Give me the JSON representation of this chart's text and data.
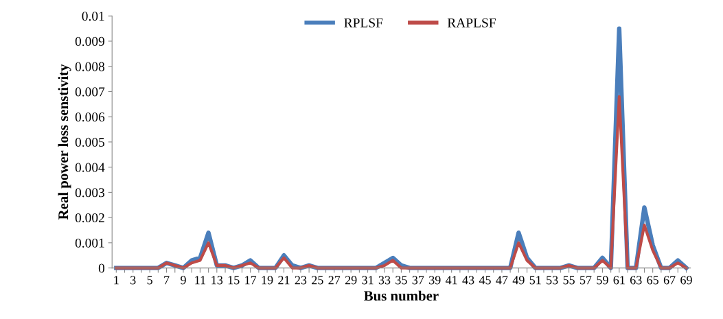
{
  "chart_data": {
    "type": "line",
    "xlabel": "Bus number",
    "ylabel": "Real power loss senstivity",
    "categories": [
      "1",
      null,
      "3",
      null,
      "5",
      null,
      "7",
      null,
      "9",
      null,
      "11",
      null,
      "13",
      null,
      "15",
      null,
      "17",
      null,
      "19",
      null,
      "21",
      null,
      "23",
      null,
      "25",
      null,
      "27",
      null,
      "29",
      null,
      "31",
      null,
      "33",
      null,
      "35",
      null,
      "37",
      null,
      "39",
      null,
      "41",
      null,
      "43",
      null,
      "45",
      null,
      "47",
      null,
      "49",
      null,
      "51",
      null,
      "53",
      null,
      "55",
      null,
      "57",
      null,
      "59",
      null,
      "61",
      null,
      "63",
      null,
      "65",
      null,
      "67",
      null,
      "69"
    ],
    "series": [
      {
        "name": "RPLSF",
        "color": "#4a7ebb",
        "values": [
          0,
          0,
          0,
          0,
          0,
          0,
          0.0002,
          0.0001,
          0,
          0.0003,
          0.0004,
          0.0014,
          0.0001,
          0.0001,
          0,
          0.0001,
          0.0003,
          0,
          0,
          0,
          0.0005,
          0.0001,
          0,
          0.0001,
          0,
          0,
          0,
          0,
          0,
          0,
          0,
          0,
          0.0002,
          0.0004,
          0.0001,
          0,
          0,
          0,
          0,
          0,
          0,
          0,
          0,
          0,
          0,
          0,
          0,
          0,
          0.0014,
          0.0004,
          0,
          0,
          0,
          0,
          0.0001,
          0,
          0,
          0,
          0.0004,
          0,
          0.0095,
          0,
          0,
          0.0024,
          0.0009,
          0,
          0,
          0.0003,
          0
        ]
      },
      {
        "name": "RAPLSF",
        "color": "#be4b48",
        "values": [
          0,
          0,
          0,
          0,
          0,
          0,
          0.0002,
          0.0001,
          0,
          0.0002,
          0.0003,
          0.001,
          0.0001,
          0.0001,
          0,
          0.0001,
          0.0002,
          0,
          0,
          0,
          0.0004,
          0,
          0,
          0.0001,
          0,
          0,
          0,
          0,
          0,
          0,
          0,
          0,
          0.0001,
          0.0003,
          0,
          0,
          0,
          0,
          0,
          0,
          0,
          0,
          0,
          0,
          0,
          0,
          0,
          0,
          0.001,
          0.0003,
          0,
          0,
          0,
          0,
          0.0001,
          0,
          0,
          0,
          0.0003,
          0,
          0.0068,
          0,
          0,
          0.0017,
          0.0007,
          0,
          0,
          0.0002,
          0
        ]
      }
    ],
    "ylim": [
      0,
      0.01
    ],
    "yticks": [
      0,
      0.001,
      0.002,
      0.003,
      0.004,
      0.005,
      0.006,
      0.007,
      0.008,
      0.009,
      0.01
    ],
    "grid": false,
    "legend": "top",
    "marker": "none",
    "line_style": "solid"
  }
}
